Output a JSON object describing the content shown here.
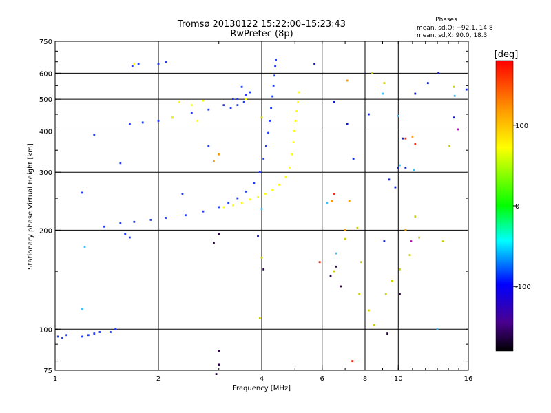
{
  "chart_data": {
    "type": "scatter",
    "title": "Tromsø 20130122 15:22:00–15:23:43",
    "subtitle": "RwPretec (8p)",
    "xlabel": "Frequency [MHz]",
    "ylabel": "Stationary phase Virtual Height [km]",
    "x_scale": "log",
    "y_scale": "log",
    "xlim": [
      1,
      16
    ],
    "ylim": [
      75,
      750
    ],
    "x_ticks": [
      1,
      2,
      4,
      6,
      8,
      10,
      16
    ],
    "y_ticks": [
      75,
      100,
      200,
      300,
      400,
      500,
      600,
      750
    ],
    "grid_x": [
      2,
      4,
      6,
      8,
      10
    ],
    "grid_y": [
      100,
      200,
      300,
      400,
      500,
      600
    ],
    "phases_box": {
      "title": "Phases",
      "line1": "mean, sd,O: −92.1, 14.8",
      "line2": "mean, sd,X:  90.0, 18.3"
    },
    "colorbar": {
      "label": "[deg]",
      "range": [
        -180,
        180
      ],
      "ticks": [
        100,
        0,
        -100
      ],
      "colors": [
        "#ff0000",
        "#ffa500",
        "#ffff00",
        "#00ff00",
        "#00ffff",
        "#0000ff",
        "#3a0060",
        "#000000"
      ]
    },
    "series": [
      {
        "color": "#1e3cff",
        "points": [
          [
            1.02,
            95
          ],
          [
            1.05,
            94
          ],
          [
            1.08,
            96
          ],
          [
            1.2,
            95
          ],
          [
            1.25,
            96
          ],
          [
            1.3,
            97
          ],
          [
            1.35,
            98
          ],
          [
            1.45,
            98
          ],
          [
            1.5,
            100
          ],
          [
            1.39,
            205
          ],
          [
            1.55,
            210
          ],
          [
            1.7,
            212
          ],
          [
            1.9,
            215
          ],
          [
            2.1,
            218
          ],
          [
            2.4,
            222
          ],
          [
            2.7,
            228
          ],
          [
            3.0,
            235
          ],
          [
            3.2,
            242
          ],
          [
            3.4,
            250
          ],
          [
            3.6,
            262
          ],
          [
            3.8,
            278
          ],
          [
            3.95,
            300
          ],
          [
            4.05,
            330
          ],
          [
            4.12,
            360
          ],
          [
            4.18,
            395
          ],
          [
            4.22,
            430
          ],
          [
            4.26,
            470
          ],
          [
            4.3,
            510
          ],
          [
            4.33,
            550
          ],
          [
            4.36,
            590
          ],
          [
            4.38,
            630
          ],
          [
            4.4,
            660
          ],
          [
            1.65,
            420
          ],
          [
            1.8,
            425
          ],
          [
            2.0,
            430
          ],
          [
            2.2,
            440
          ],
          [
            2.5,
            455
          ],
          [
            2.8,
            465
          ],
          [
            3.1,
            480
          ],
          [
            3.4,
            500
          ],
          [
            3.6,
            515
          ],
          [
            3.7,
            525
          ],
          [
            1.68,
            630
          ],
          [
            1.75,
            640
          ],
          [
            2.0,
            640
          ],
          [
            2.1,
            650
          ],
          [
            3.25,
            470
          ],
          [
            3.4,
            480
          ],
          [
            3.55,
            490
          ],
          [
            3.5,
            545
          ],
          [
            3.3,
            500
          ],
          [
            1.6,
            195
          ],
          [
            1.65,
            190
          ],
          [
            1.2,
            260
          ],
          [
            1.55,
            320
          ],
          [
            2.8,
            360
          ],
          [
            1.3,
            390
          ],
          [
            2.35,
            258
          ]
        ]
      },
      {
        "color": "#ffff00",
        "points": [
          [
            3.1,
            235
          ],
          [
            3.3,
            238
          ],
          [
            3.5,
            242
          ],
          [
            3.7,
            248
          ],
          [
            3.9,
            252
          ],
          [
            4.1,
            258
          ],
          [
            4.3,
            265
          ],
          [
            4.5,
            275
          ],
          [
            4.7,
            290
          ],
          [
            4.82,
            310
          ],
          [
            4.9,
            340
          ],
          [
            4.95,
            370
          ],
          [
            4.98,
            400
          ],
          [
            5.02,
            430
          ],
          [
            5.05,
            460
          ],
          [
            5.1,
            490
          ],
          [
            5.13,
            525
          ],
          [
            1.7,
            640
          ],
          [
            2.3,
            490
          ],
          [
            2.5,
            480
          ],
          [
            2.7,
            495
          ],
          [
            3.6,
            500
          ],
          [
            2.2,
            440
          ],
          [
            2.6,
            430
          ]
        ]
      },
      {
        "color": "#ff9900",
        "points": [
          [
            3.0,
            340
          ],
          [
            2.9,
            325
          ],
          [
            7.1,
            570
          ],
          [
            11.0,
            385
          ],
          [
            7.0,
            200
          ],
          [
            7.2,
            245
          ],
          [
            6.4,
            245
          ],
          [
            10.5,
            200
          ]
        ]
      },
      {
        "color": "#cfcf00",
        "points": [
          [
            4.0,
            165
          ],
          [
            7.0,
            188
          ],
          [
            7.6,
            203
          ],
          [
            7.7,
            128
          ],
          [
            7.8,
            160
          ],
          [
            8.2,
            114
          ],
          [
            8.5,
            103
          ],
          [
            9.6,
            140
          ],
          [
            9.2,
            128
          ],
          [
            10.1,
            152
          ],
          [
            10.8,
            168
          ],
          [
            11.2,
            220
          ],
          [
            11.5,
            190
          ],
          [
            13.5,
            185
          ],
          [
            14.1,
            360
          ],
          [
            14.5,
            545
          ],
          [
            9.1,
            560
          ],
          [
            8.4,
            600
          ],
          [
            4.0,
            440
          ],
          [
            6.5,
            150
          ],
          [
            3.95,
            108
          ]
        ]
      },
      {
        "color": "#40c0ff",
        "points": [
          [
            1.2,
            115
          ],
          [
            4.0,
            232
          ],
          [
            6.6,
            170
          ],
          [
            6.2,
            242
          ],
          [
            9.0,
            520
          ],
          [
            10.0,
            445
          ],
          [
            11.1,
            305
          ],
          [
            13.0,
            100
          ],
          [
            14.6,
            512
          ],
          [
            10.1,
            315
          ],
          [
            1.22,
            178
          ]
        ]
      },
      {
        "color": "#0a1ccc",
        "points": [
          [
            5.7,
            640
          ],
          [
            6.5,
            490
          ],
          [
            7.1,
            420
          ],
          [
            7.4,
            330
          ],
          [
            8.2,
            450
          ],
          [
            9.4,
            285
          ],
          [
            9.8,
            270
          ],
          [
            10.0,
            310
          ],
          [
            10.3,
            380
          ],
          [
            10.5,
            310
          ],
          [
            11.2,
            520
          ],
          [
            12.2,
            560
          ],
          [
            13.1,
            600
          ],
          [
            14.5,
            440
          ],
          [
            15.8,
            535
          ],
          [
            9.1,
            185
          ],
          [
            3.9,
            192
          ]
        ]
      },
      {
        "color": "#300050",
        "points": [
          [
            2.9,
            183
          ],
          [
            3.0,
            195
          ],
          [
            3.0,
            86
          ],
          [
            2.95,
            73
          ],
          [
            3.0,
            78
          ],
          [
            6.6,
            155
          ],
          [
            6.8,
            135
          ],
          [
            9.3,
            97
          ],
          [
            10.1,
            128
          ],
          [
            4.05,
            152
          ],
          [
            6.35,
            145
          ]
        ]
      },
      {
        "color": "#ff2000",
        "points": [
          [
            6.5,
            258
          ],
          [
            5.9,
            160
          ],
          [
            7.35,
            80
          ],
          [
            11.2,
            365
          ],
          [
            10.5,
            380
          ]
        ]
      },
      {
        "color": "#c000c0",
        "points": [
          [
            10.9,
            185
          ],
          [
            14.9,
            405
          ]
        ]
      }
    ]
  }
}
